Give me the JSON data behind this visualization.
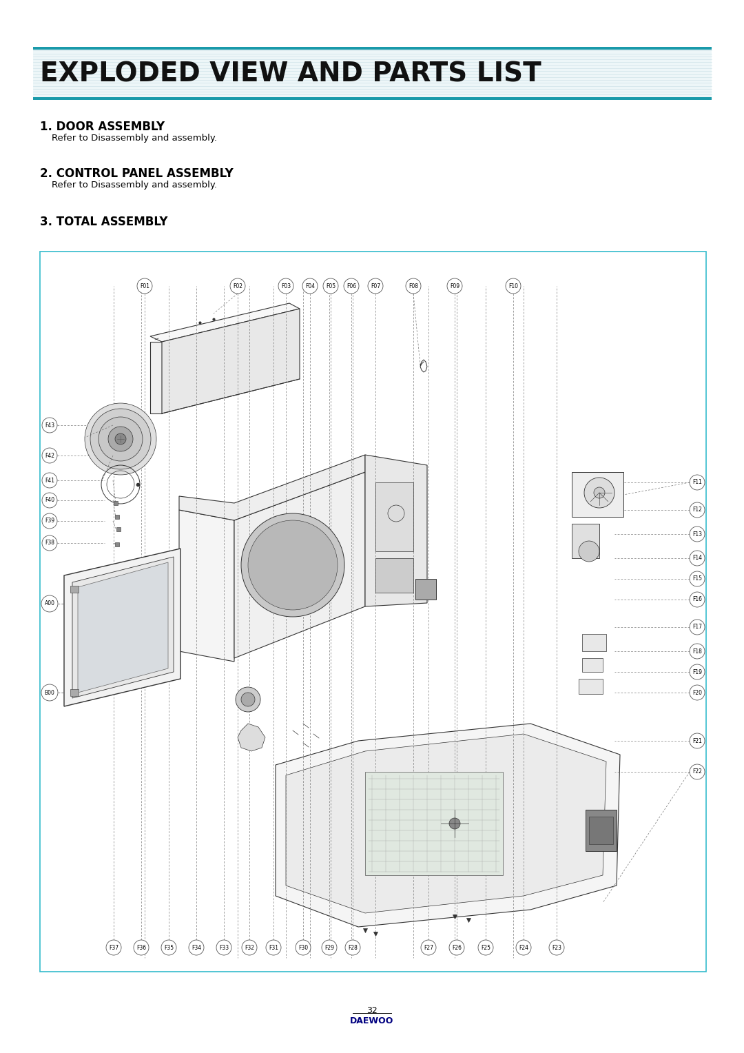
{
  "title": "EXPLODED VIEW AND PARTS LIST",
  "title_color": "#000000",
  "title_bar_color": "#1a9aaa",
  "section1_header": "1. DOOR ASSEMBLY",
  "section1_text": "Refer to Disassembly and assembly.",
  "section2_header": "2. CONTROL PANEL ASSEMBLY",
  "section2_text": "Refer to Disassembly and assembly.",
  "section3_header": "3. TOTAL ASSEMBLY",
  "page_number": "32",
  "brand": "DAEWOO",
  "brand_color": "#000080",
  "diagram_border_color": "#33bbcc",
  "bg_color": "#ffffff",
  "top_labels": [
    "F01",
    "F02",
    "F03",
    "F04",
    "F05",
    "F06",
    "F07",
    "F08",
    "F09",
    "F10"
  ],
  "right_labels": [
    "F11",
    "F12",
    "F13",
    "F14",
    "F15",
    "F16",
    "F17",
    "F18",
    "F19",
    "F20",
    "F21",
    "F22"
  ],
  "bottom_labels_left": [
    "F37",
    "F36",
    "F35",
    "F34",
    "F33",
    "F32",
    "F31",
    "F30",
    "F29",
    "F28"
  ],
  "bottom_labels_right": [
    "F27",
    "F26",
    "F25",
    "F24",
    "F23"
  ],
  "left_labels": [
    "F43",
    "F42",
    "F41",
    "F40",
    "F39",
    "F38"
  ],
  "misc_labels": [
    "A00",
    "B00"
  ]
}
